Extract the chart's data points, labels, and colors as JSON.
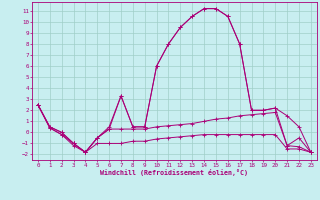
{
  "xlabel": "Windchill (Refroidissement éolien,°C)",
  "background_color": "#c8eef0",
  "grid_color": "#a0cfc8",
  "line_color": "#aa0077",
  "x_values": [
    0,
    1,
    2,
    3,
    4,
    5,
    6,
    7,
    8,
    9,
    10,
    11,
    12,
    13,
    14,
    15,
    16,
    17,
    18,
    19,
    20,
    21,
    22,
    23
  ],
  "line1": [
    2.5,
    0.5,
    0.0,
    -1.0,
    -1.8,
    -0.5,
    0.5,
    3.3,
    0.5,
    0.5,
    6.0,
    8.0,
    9.5,
    10.5,
    11.2,
    11.2,
    10.5,
    8.0,
    2.0,
    2.0,
    2.2,
    1.5,
    0.5,
    -1.8
  ],
  "line2": [
    2.5,
    0.5,
    0.0,
    -1.0,
    -1.8,
    -0.5,
    0.3,
    3.3,
    0.5,
    0.5,
    6.0,
    8.0,
    9.5,
    10.5,
    11.2,
    11.2,
    10.5,
    8.0,
    2.0,
    2.0,
    2.2,
    -1.2,
    -0.5,
    -1.8
  ],
  "line3": [
    2.5,
    0.4,
    -0.2,
    -1.0,
    -1.8,
    -0.5,
    0.3,
    0.3,
    0.3,
    0.3,
    0.5,
    0.6,
    0.7,
    0.8,
    1.0,
    1.2,
    1.3,
    1.5,
    1.6,
    1.7,
    1.8,
    -1.2,
    -1.3,
    -1.8
  ],
  "line4": [
    2.5,
    0.4,
    -0.2,
    -1.2,
    -1.8,
    -1.0,
    -1.0,
    -1.0,
    -0.8,
    -0.8,
    -0.6,
    -0.5,
    -0.4,
    -0.3,
    -0.2,
    -0.2,
    -0.2,
    -0.2,
    -0.2,
    -0.2,
    -0.2,
    -1.5,
    -1.5,
    -1.8
  ],
  "ylim": [
    -2.5,
    11.8
  ],
  "xlim": [
    -0.5,
    23.5
  ],
  "yticks": [
    -2,
    -1,
    0,
    1,
    2,
    3,
    4,
    5,
    6,
    7,
    8,
    9,
    10,
    11
  ]
}
